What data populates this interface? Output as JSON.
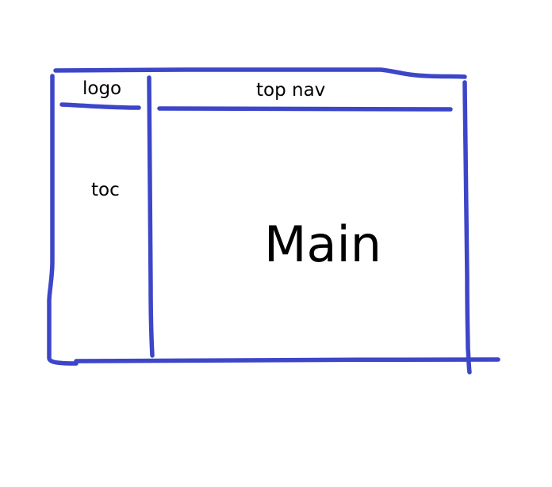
{
  "diagram": {
    "labels": {
      "logo": "logo",
      "top_nav": "top nav",
      "toc": "toc",
      "main": "Main"
    },
    "colors": {
      "stroke": "#3d46c9",
      "text": "#000000",
      "background": "#ffffff"
    }
  }
}
